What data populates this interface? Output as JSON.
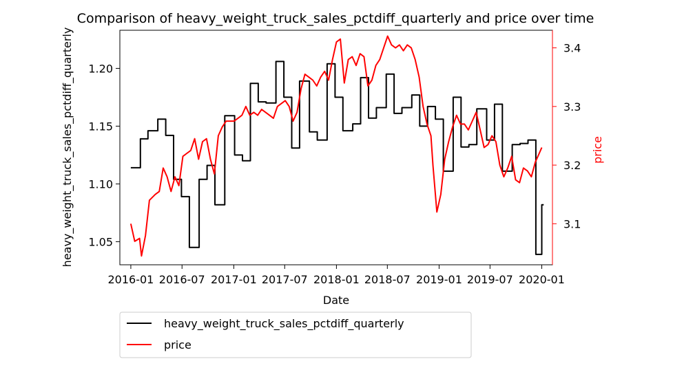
{
  "chart_data": {
    "type": "line",
    "title": "Comparison of heavy_weight_truck_sales_pctdiff_quarterly and price over time",
    "xlabel": "Date",
    "ylabel_left": "heavy_weight_truck_sales_pctdiff_quarterly",
    "ylabel_right": "price",
    "x_ticks": [
      "2016-01",
      "2016-07",
      "2017-01",
      "2017-07",
      "2018-01",
      "2018-07",
      "2019-01",
      "2019-07",
      "2020-01"
    ],
    "y_left_ticks": [
      "1.05",
      "1.10",
      "1.15",
      "1.20"
    ],
    "y_right_ticks": [
      "3.1",
      "3.2",
      "3.3",
      "3.4"
    ],
    "x_range": [
      "2015-11-23",
      "2020-02-08"
    ],
    "y_left_range": [
      1.03,
      1.233
    ],
    "y_right_range": [
      3.03,
      3.43
    ],
    "colors": {
      "truck": "#000000",
      "price": "#ff0000",
      "right_axis": "#ff0000"
    },
    "legend_placement": "below",
    "series": [
      {
        "name": "heavy_weight_truck_sales_pctdiff_quarterly",
        "axis": "left",
        "step": true,
        "points": [
          [
            "2016-01-01",
            1.114
          ],
          [
            "2016-02-04",
            1.139
          ],
          [
            "2016-03-02",
            1.146
          ],
          [
            "2016-04-06",
            1.156
          ],
          [
            "2016-05-04",
            1.142
          ],
          [
            "2016-06-01",
            1.104
          ],
          [
            "2016-06-29",
            1.089
          ],
          [
            "2016-07-27",
            1.045
          ],
          [
            "2016-08-31",
            1.104
          ],
          [
            "2016-09-28",
            1.116
          ],
          [
            "2016-10-26",
            1.082
          ],
          [
            "2016-11-30",
            1.159
          ],
          [
            "2017-01-04",
            1.125
          ],
          [
            "2017-02-01",
            1.12
          ],
          [
            "2017-03-01",
            1.187
          ],
          [
            "2017-03-29",
            1.171
          ],
          [
            "2017-04-26",
            1.17
          ],
          [
            "2017-05-31",
            1.206
          ],
          [
            "2017-06-28",
            1.175
          ],
          [
            "2017-07-26",
            1.131
          ],
          [
            "2017-08-23",
            1.189
          ],
          [
            "2017-09-27",
            1.145
          ],
          [
            "2017-10-25",
            1.138
          ],
          [
            "2017-11-29",
            1.204
          ],
          [
            "2017-12-27",
            1.175
          ],
          [
            "2018-01-24",
            1.146
          ],
          [
            "2018-02-28",
            1.152
          ],
          [
            "2018-03-28",
            1.192
          ],
          [
            "2018-04-25",
            1.157
          ],
          [
            "2018-05-23",
            1.166
          ],
          [
            "2018-06-27",
            1.195
          ],
          [
            "2018-07-25",
            1.161
          ],
          [
            "2018-08-22",
            1.166
          ],
          [
            "2018-09-26",
            1.177
          ],
          [
            "2018-10-24",
            1.15
          ],
          [
            "2018-11-21",
            1.167
          ],
          [
            "2018-12-19",
            1.156
          ],
          [
            "2019-01-16",
            1.111
          ],
          [
            "2019-02-20",
            1.175
          ],
          [
            "2019-03-20",
            1.132
          ],
          [
            "2019-04-17",
            1.134
          ],
          [
            "2019-05-15",
            1.165
          ],
          [
            "2019-06-19",
            1.138
          ],
          [
            "2019-07-17",
            1.169
          ],
          [
            "2019-08-14",
            1.111
          ],
          [
            "2019-09-18",
            1.134
          ],
          [
            "2019-10-16",
            1.135
          ],
          [
            "2019-11-13",
            1.138
          ],
          [
            "2019-12-11",
            1.039
          ],
          [
            "2020-01-01",
            1.082
          ],
          [
            "2020-01-08",
            1.082
          ]
        ]
      },
      {
        "name": "price",
        "axis": "right",
        "points": [
          [
            "2016-01-01",
            3.1
          ],
          [
            "2016-01-15",
            3.07
          ],
          [
            "2016-02-01",
            3.075
          ],
          [
            "2016-02-08",
            3.045
          ],
          [
            "2016-02-22",
            3.08
          ],
          [
            "2016-03-07",
            3.14
          ],
          [
            "2016-03-28",
            3.15
          ],
          [
            "2016-04-11",
            3.155
          ],
          [
            "2016-04-25",
            3.195
          ],
          [
            "2016-05-09",
            3.18
          ],
          [
            "2016-05-23",
            3.155
          ],
          [
            "2016-06-06",
            3.18
          ],
          [
            "2016-06-20",
            3.165
          ],
          [
            "2016-07-04",
            3.215
          ],
          [
            "2016-07-18",
            3.22
          ],
          [
            "2016-08-01",
            3.225
          ],
          [
            "2016-08-15",
            3.245
          ],
          [
            "2016-08-29",
            3.21
          ],
          [
            "2016-09-12",
            3.24
          ],
          [
            "2016-09-26",
            3.245
          ],
          [
            "2016-10-10",
            3.21
          ],
          [
            "2016-10-24",
            3.185
          ],
          [
            "2016-11-07",
            3.25
          ],
          [
            "2016-11-21",
            3.265
          ],
          [
            "2016-12-05",
            3.275
          ],
          [
            "2016-12-19",
            3.275
          ],
          [
            "2017-01-02",
            3.275
          ],
          [
            "2017-01-16",
            3.28
          ],
          [
            "2017-01-30",
            3.285
          ],
          [
            "2017-02-13",
            3.3
          ],
          [
            "2017-02-27",
            3.285
          ],
          [
            "2017-03-13",
            3.29
          ],
          [
            "2017-03-27",
            3.285
          ],
          [
            "2017-04-10",
            3.295
          ],
          [
            "2017-04-24",
            3.29
          ],
          [
            "2017-05-08",
            3.285
          ],
          [
            "2017-05-22",
            3.28
          ],
          [
            "2017-06-05",
            3.3
          ],
          [
            "2017-06-19",
            3.305
          ],
          [
            "2017-07-03",
            3.31
          ],
          [
            "2017-07-17",
            3.3
          ],
          [
            "2017-07-31",
            3.275
          ],
          [
            "2017-08-14",
            3.29
          ],
          [
            "2017-08-28",
            3.33
          ],
          [
            "2017-09-11",
            3.355
          ],
          [
            "2017-09-25",
            3.35
          ],
          [
            "2017-10-09",
            3.345
          ],
          [
            "2017-10-23",
            3.335
          ],
          [
            "2017-11-06",
            3.35
          ],
          [
            "2017-11-20",
            3.36
          ],
          [
            "2017-12-04",
            3.345
          ],
          [
            "2017-12-18",
            3.38
          ],
          [
            "2018-01-01",
            3.41
          ],
          [
            "2018-01-15",
            3.415
          ],
          [
            "2018-01-29",
            3.34
          ],
          [
            "2018-02-12",
            3.38
          ],
          [
            "2018-02-26",
            3.385
          ],
          [
            "2018-03-12",
            3.37
          ],
          [
            "2018-03-26",
            3.39
          ],
          [
            "2018-04-09",
            3.385
          ],
          [
            "2018-04-23",
            3.335
          ],
          [
            "2018-05-07",
            3.345
          ],
          [
            "2018-05-21",
            3.37
          ],
          [
            "2018-06-04",
            3.38
          ],
          [
            "2018-06-18",
            3.4
          ],
          [
            "2018-07-02",
            3.42
          ],
          [
            "2018-07-16",
            3.405
          ],
          [
            "2018-07-30",
            3.4
          ],
          [
            "2018-08-13",
            3.405
          ],
          [
            "2018-08-27",
            3.395
          ],
          [
            "2018-09-10",
            3.405
          ],
          [
            "2018-09-24",
            3.4
          ],
          [
            "2018-10-08",
            3.38
          ],
          [
            "2018-10-22",
            3.35
          ],
          [
            "2018-11-05",
            3.3
          ],
          [
            "2018-11-19",
            3.27
          ],
          [
            "2018-12-03",
            3.25
          ],
          [
            "2018-12-10",
            3.2
          ],
          [
            "2018-12-24",
            3.12
          ],
          [
            "2019-01-07",
            3.15
          ],
          [
            "2019-01-21",
            3.21
          ],
          [
            "2019-02-04",
            3.24
          ],
          [
            "2019-02-18",
            3.265
          ],
          [
            "2019-03-04",
            3.285
          ],
          [
            "2019-03-18",
            3.27
          ],
          [
            "2019-04-01",
            3.27
          ],
          [
            "2019-04-15",
            3.26
          ],
          [
            "2019-04-29",
            3.275
          ],
          [
            "2019-05-13",
            3.29
          ],
          [
            "2019-05-27",
            3.26
          ],
          [
            "2019-06-10",
            3.23
          ],
          [
            "2019-06-24",
            3.235
          ],
          [
            "2019-07-08",
            3.25
          ],
          [
            "2019-07-22",
            3.24
          ],
          [
            "2019-08-05",
            3.2
          ],
          [
            "2019-08-19",
            3.18
          ],
          [
            "2019-09-02",
            3.195
          ],
          [
            "2019-09-16",
            3.215
          ],
          [
            "2019-09-30",
            3.175
          ],
          [
            "2019-10-14",
            3.17
          ],
          [
            "2019-10-28",
            3.195
          ],
          [
            "2019-11-11",
            3.19
          ],
          [
            "2019-11-25",
            3.18
          ],
          [
            "2019-12-09",
            3.205
          ],
          [
            "2019-12-23",
            3.22
          ],
          [
            "2020-01-01",
            3.23
          ]
        ]
      }
    ]
  }
}
